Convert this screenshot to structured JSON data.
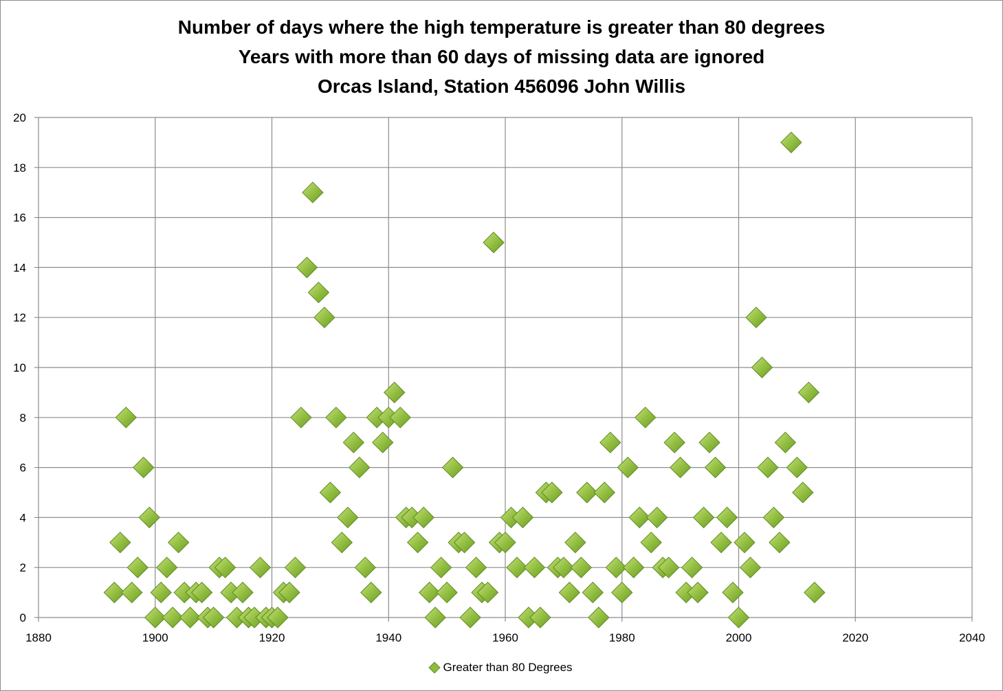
{
  "chart_data": {
    "type": "scatter",
    "title": "Number of days where the high temperature is greater than 80 degrees",
    "subtitle": "Years with more than 60 days of missing data are ignored",
    "subtitle2": "Orcas Island, Station 456096 John Willis",
    "xlabel": "",
    "ylabel": "",
    "xlim": [
      1880,
      2040
    ],
    "ylim": [
      0,
      20
    ],
    "x_ticks": [
      1880,
      1900,
      1920,
      1940,
      1960,
      1980,
      2000,
      2020,
      2040
    ],
    "y_ticks": [
      0,
      2,
      4,
      6,
      8,
      10,
      12,
      14,
      16,
      18,
      20
    ],
    "grid": true,
    "legend_position": "bottom",
    "marker_color": "#90bc3e",
    "series": [
      {
        "name": "Greater than 80 Degrees",
        "x": [
          1893,
          1894,
          1895,
          1896,
          1897,
          1898,
          1899,
          1900,
          1901,
          1902,
          1903,
          1904,
          1905,
          1906,
          1907,
          1908,
          1909,
          1910,
          1911,
          1912,
          1913,
          1914,
          1915,
          1916,
          1917,
          1918,
          1919,
          1920,
          1921,
          1922,
          1923,
          1924,
          1925,
          1926,
          1927,
          1928,
          1929,
          1930,
          1931,
          1932,
          1933,
          1934,
          1935,
          1936,
          1937,
          1938,
          1939,
          1940,
          1941,
          1942,
          1943,
          1944,
          1945,
          1946,
          1947,
          1948,
          1949,
          1950,
          1951,
          1952,
          1953,
          1954,
          1955,
          1956,
          1957,
          1958,
          1959,
          1960,
          1961,
          1962,
          1963,
          1964,
          1965,
          1966,
          1967,
          1968,
          1969,
          1970,
          1971,
          1972,
          1973,
          1974,
          1975,
          1976,
          1977,
          1978,
          1979,
          1980,
          1981,
          1982,
          1983,
          1984,
          1985,
          1986,
          1987,
          1988,
          1989,
          1990,
          1991,
          1992,
          1993,
          1994,
          1995,
          1996,
          1997,
          1998,
          1999,
          2000,
          2001,
          2002,
          2003,
          2004,
          2005,
          2006,
          2007,
          2008,
          2009,
          2010,
          2011,
          2012,
          2013
        ],
        "y": [
          1,
          3,
          8,
          1,
          2,
          6,
          4,
          0,
          1,
          2,
          0,
          3,
          1,
          0,
          1,
          1,
          0,
          0,
          2,
          2,
          1,
          0,
          1,
          0,
          0,
          2,
          0,
          0,
          0,
          1,
          1,
          2,
          8,
          14,
          17,
          13,
          12,
          5,
          8,
          3,
          4,
          7,
          6,
          2,
          1,
          8,
          7,
          8,
          9,
          8,
          4,
          4,
          3,
          4,
          1,
          0,
          2,
          1,
          6,
          3,
          3,
          0,
          2,
          1,
          1,
          15,
          3,
          3,
          4,
          2,
          4,
          0,
          2,
          0,
          5,
          5,
          2,
          2,
          1,
          3,
          2,
          5,
          1,
          0,
          5,
          7,
          2,
          1,
          6,
          2,
          4,
          8,
          3,
          4,
          2,
          2,
          7,
          6,
          1,
          2,
          1,
          4,
          7,
          6,
          3,
          4,
          1,
          0,
          3,
          2,
          12,
          10,
          6,
          4,
          3,
          7,
          19,
          6,
          5,
          9,
          1
        ]
      }
    ]
  },
  "legend": {
    "label": "Greater than 80 Degrees"
  }
}
